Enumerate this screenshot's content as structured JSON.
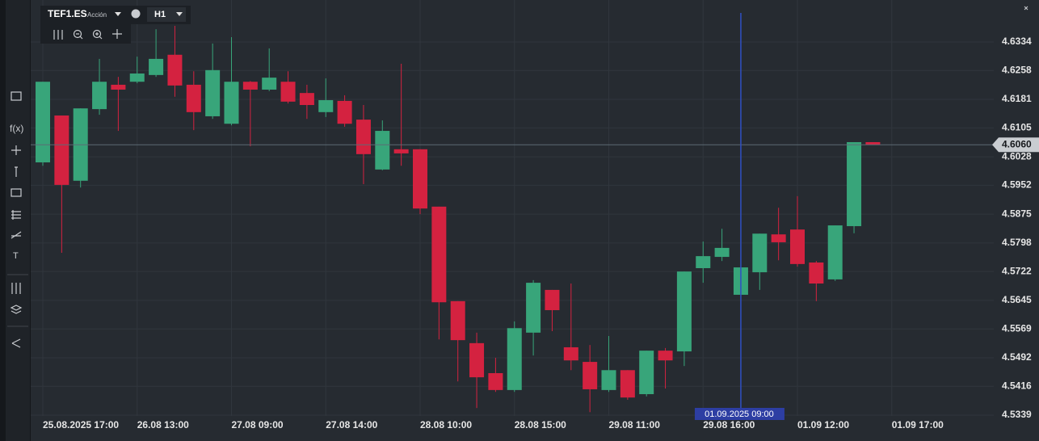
{
  "toolbar": {
    "symbol": "TEF1.ES",
    "asset_type": "Acción",
    "timeframe": "H1",
    "function_icon": "f(x)",
    "text_icon": "T"
  },
  "chart_data": {
    "type": "candlestick",
    "categories": [
      "25.08.2025 17:00",
      null,
      null,
      null,
      null,
      "26.08 13:00",
      null,
      null,
      null,
      null,
      "27.08 09:00",
      null,
      null,
      null,
      null,
      "27.08 14:00",
      null,
      null,
      null,
      null,
      "28.08 10:00",
      null,
      null,
      null,
      null,
      "28.08 15:00",
      null,
      null,
      null,
      null,
      "29.08 11:00",
      null,
      null,
      null,
      null,
      "29.08 16:00",
      null,
      null,
      null,
      null,
      "01.09 12:00",
      null,
      null,
      null,
      null,
      "01.09 17:00"
    ],
    "open": [
      4.6013,
      4.6138,
      4.5964,
      4.6155,
      4.622,
      4.6228,
      4.6246,
      4.63,
      4.622,
      4.6136,
      4.6116,
      4.6228,
      4.6207,
      4.6228,
      4.6198,
      4.6147,
      4.6177,
      4.6127,
      4.5994,
      4.6048,
      4.6048,
      4.5895,
      4.5643,
      4.5531,
      4.5451,
      4.5406,
      4.5559,
      4.5673,
      4.552,
      4.5481,
      4.5406,
      4.5459,
      4.5395,
      4.5511,
      4.5509,
      4.5731,
      4.5761,
      4.566,
      4.572,
      4.5821,
      4.5834,
      4.5746,
      4.5701,
      4.5843,
      4.6067,
      null
    ],
    "high": [
      4.6228,
      4.6138,
      4.6157,
      4.6289,
      4.6241,
      4.6295,
      4.6368,
      4.6377,
      4.6256,
      4.633,
      4.6347,
      4.623,
      4.6317,
      4.6256,
      4.622,
      4.6237,
      4.6192,
      4.6166,
      4.6125,
      4.6276,
      4.6048,
      4.5895,
      4.5643,
      4.5559,
      4.5492,
      4.5589,
      4.5699,
      4.5673,
      4.569,
      4.5526,
      4.555,
      4.5459,
      4.5511,
      4.5518,
      4.5722,
      4.5802,
      4.5836,
      4.5733,
      4.5823,
      4.5892,
      4.5923,
      4.575,
      4.5845,
      4.6067,
      4.6067,
      null
    ],
    "low": [
      4.6004,
      4.5772,
      4.5946,
      4.614,
      4.6097,
      4.6224,
      4.6241,
      4.6188,
      4.6099,
      4.6129,
      4.6112,
      4.6056,
      4.6203,
      4.617,
      4.6129,
      4.6134,
      4.6108,
      4.5955,
      4.5992,
      4.6004,
      4.5875,
      4.5541,
      4.5429,
      4.5358,
      4.5401,
      4.5401,
      4.5498,
      4.5563,
      4.5459,
      4.5347,
      4.5401,
      4.538,
      4.5389,
      4.541,
      4.547,
      4.5692,
      4.575,
      4.5658,
      4.5673,
      4.5752,
      4.5735,
      4.5643,
      4.5697,
      4.5824,
      4.606,
      null
    ],
    "close": [
      4.6228,
      4.5953,
      4.6157,
      4.6228,
      4.6207,
      4.625,
      4.6289,
      4.6218,
      4.6147,
      4.6259,
      4.6228,
      4.6207,
      4.6239,
      4.6175,
      4.6166,
      4.6179,
      4.6116,
      4.6035,
      4.6097,
      4.6037,
      4.589,
      4.564,
      4.5539,
      4.544,
      4.5406,
      4.5571,
      4.5692,
      4.5619,
      4.5485,
      4.5408,
      4.5459,
      4.5386,
      4.5511,
      4.5485,
      4.5722,
      4.5763,
      4.5785,
      4.5733,
      4.5823,
      4.58,
      4.5742,
      4.569,
      4.5845,
      4.6067,
      4.606,
      null
    ],
    "up_color": "#38a57a",
    "down_color": "#d42240",
    "ylim": [
      4.5283,
      4.6446
    ],
    "yticks": [
      4.5339,
      4.5416,
      4.5492,
      4.5569,
      4.5645,
      4.5722,
      4.5798,
      4.5875,
      4.5952,
      4.6028,
      4.6105,
      4.6181,
      4.6258,
      4.6334
    ],
    "grid": true,
    "last_price": {
      "value": 4.606,
      "label": "4.6060"
    },
    "crosshair": {
      "label": "01.09.2025 09:00",
      "index": 37
    }
  }
}
